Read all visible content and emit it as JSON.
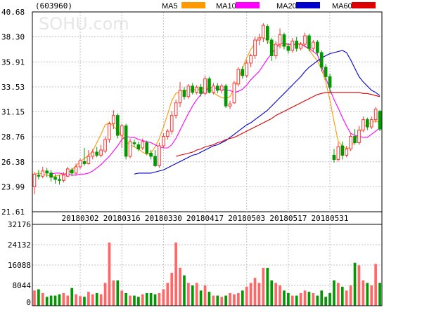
{
  "stock_code": "(603960)",
  "watermark": "SOHU.com",
  "legend": [
    {
      "label": "MA5",
      "color": "#ff9900"
    },
    {
      "label": "MA10",
      "color": "#ff00ff"
    },
    {
      "label": "MA20",
      "color": "#0000cc"
    },
    {
      "label": "MA60",
      "color": "#dd0000"
    }
  ],
  "colors": {
    "up": "#ff3333",
    "down": "#009900",
    "grid": "#c0c0c0"
  },
  "chart_data": {
    "type": "candlestick",
    "price_axis": {
      "ticks": [
        "40.68",
        "38.30",
        "35.91",
        "33.53",
        "31.15",
        "28.76",
        "26.38",
        "23.99",
        "21.61"
      ],
      "min": 21.61,
      "max": 40.68
    },
    "volume_axis": {
      "ticks": [
        "32176",
        "24132",
        "16088",
        "8044",
        "0"
      ],
      "min": 0,
      "max": 32176
    },
    "date_ticks": [
      {
        "label": "20180302",
        "index": 11
      },
      {
        "label": "20180316",
        "index": 21
      },
      {
        "label": "20180330",
        "index": 31
      },
      {
        "label": "20180417",
        "index": 41
      },
      {
        "label": "20180503",
        "index": 51
      },
      {
        "label": "20180517",
        "index": 61
      },
      {
        "label": "20180531",
        "index": 71
      }
    ],
    "candles": [
      [
        24.0,
        25.2,
        25.4,
        23.3
      ],
      [
        25.1,
        25.0,
        25.6,
        24.7
      ],
      [
        25.0,
        25.5,
        25.9,
        24.8
      ],
      [
        25.5,
        25.3,
        25.8,
        24.9
      ],
      [
        25.3,
        24.9,
        25.6,
        24.5
      ],
      [
        24.9,
        24.7,
        25.2,
        24.3
      ],
      [
        24.7,
        24.6,
        25.1,
        24.2
      ],
      [
        24.6,
        25.1,
        25.4,
        24.4
      ],
      [
        25.0,
        25.7,
        25.9,
        24.9
      ],
      [
        25.6,
        25.3,
        25.8,
        25.0
      ],
      [
        25.3,
        25.9,
        26.2,
        25.1
      ],
      [
        25.9,
        26.5,
        26.7,
        25.7
      ],
      [
        26.4,
        26.2,
        27.7,
        26.0
      ],
      [
        26.2,
        26.9,
        27.5,
        26.1
      ],
      [
        26.9,
        27.3,
        27.6,
        26.6
      ],
      [
        27.3,
        27.0,
        27.8,
        26.8
      ],
      [
        27.0,
        27.5,
        28.0,
        26.8
      ],
      [
        27.4,
        28.5,
        28.8,
        27.2
      ],
      [
        28.5,
        30.0,
        30.2,
        28.2
      ],
      [
        30.0,
        30.8,
        31.3,
        29.5
      ],
      [
        30.8,
        28.9,
        31.0,
        28.6
      ],
      [
        28.9,
        29.8,
        30.0,
        27.7
      ],
      [
        29.8,
        26.9,
        30.0,
        26.6
      ],
      [
        26.9,
        28.3,
        28.6,
        26.7
      ],
      [
        28.2,
        28.1,
        28.5,
        27.8
      ],
      [
        28.0,
        27.6,
        28.3,
        27.4
      ],
      [
        27.7,
        28.3,
        28.6,
        27.5
      ],
      [
        28.2,
        27.2,
        28.4,
        27.0
      ],
      [
        27.2,
        26.9,
        27.5,
        26.6
      ],
      [
        26.9,
        26.0,
        27.5,
        25.9
      ],
      [
        26.0,
        27.9,
        28.2,
        25.8
      ],
      [
        27.9,
        28.8,
        29.1,
        27.7
      ],
      [
        28.8,
        29.3,
        29.5,
        28.5
      ],
      [
        29.3,
        30.8,
        31.2,
        29.0
      ],
      [
        30.8,
        32.0,
        32.3,
        30.5
      ],
      [
        32.0,
        33.2,
        34.0,
        31.6
      ],
      [
        33.2,
        32.6,
        33.5,
        32.3
      ],
      [
        32.6,
        33.6,
        33.8,
        32.4
      ],
      [
        33.6,
        33.0,
        33.9,
        32.8
      ],
      [
        33.0,
        33.5,
        33.7,
        32.8
      ],
      [
        33.5,
        32.9,
        33.8,
        32.6
      ],
      [
        32.9,
        34.3,
        34.6,
        32.7
      ],
      [
        34.3,
        33.0,
        34.5,
        32.9
      ],
      [
        33.0,
        33.6,
        33.9,
        32.8
      ],
      [
        33.6,
        33.2,
        33.9,
        32.9
      ],
      [
        33.2,
        33.6,
        33.8,
        32.9
      ],
      [
        33.6,
        31.7,
        33.8,
        31.5
      ],
      [
        31.7,
        31.9,
        32.2,
        31.4
      ],
      [
        32.0,
        33.9,
        34.1,
        31.9
      ],
      [
        33.8,
        35.2,
        35.4,
        33.6
      ],
      [
        35.2,
        34.6,
        35.5,
        34.3
      ],
      [
        34.6,
        35.8,
        36.1,
        34.4
      ],
      [
        35.8,
        36.5,
        36.7,
        35.4
      ],
      [
        36.5,
        38.0,
        38.3,
        36.2
      ],
      [
        38.0,
        38.2,
        38.6,
        37.5
      ],
      [
        38.2,
        39.4,
        39.6,
        37.8
      ],
      [
        39.3,
        38.0,
        39.5,
        37.6
      ],
      [
        38.0,
        36.5,
        38.2,
        36.0
      ],
      [
        36.5,
        37.6,
        37.9,
        36.2
      ],
      [
        37.6,
        38.5,
        39.1,
        37.2
      ],
      [
        38.5,
        37.4,
        38.7,
        37.1
      ],
      [
        37.4,
        37.0,
        37.7,
        36.7
      ],
      [
        37.0,
        37.9,
        38.2,
        36.8
      ],
      [
        37.9,
        37.2,
        38.3,
        36.9
      ],
      [
        37.2,
        37.6,
        37.8,
        37.0
      ],
      [
        37.6,
        38.4,
        38.7,
        37.3
      ],
      [
        38.4,
        37.2,
        38.6,
        36.9
      ],
      [
        37.2,
        37.8,
        38.0,
        36.9
      ],
      [
        37.8,
        36.8,
        38.0,
        36.5
      ],
      [
        36.8,
        35.4,
        37.0,
        35.0
      ],
      [
        35.4,
        34.5,
        35.7,
        34.2
      ],
      [
        34.5,
        33.5,
        34.8,
        32.9
      ],
      [
        27.0,
        26.6,
        27.6,
        26.3
      ],
      [
        26.6,
        27.8,
        28.2,
        26.4
      ],
      [
        27.9,
        27.0,
        28.3,
        26.6
      ],
      [
        27.0,
        27.6,
        27.9,
        26.8
      ],
      [
        27.6,
        28.8,
        29.1,
        27.4
      ],
      [
        28.8,
        28.2,
        29.5,
        28.0
      ],
      [
        28.2,
        29.4,
        29.8,
        28.0
      ],
      [
        29.4,
        30.4,
        30.7,
        29.2
      ],
      [
        30.4,
        29.7,
        30.6,
        29.4
      ],
      [
        29.7,
        30.4,
        30.7,
        29.5
      ],
      [
        30.4,
        31.4,
        31.6,
        30.1
      ],
      [
        31.2,
        29.5,
        31.3,
        29.3
      ]
    ],
    "ma": {
      "MA5": [
        25.2,
        25.3,
        25.2,
        25.1,
        25.0,
        25.0,
        25.1,
        25.2,
        25.3,
        25.6,
        26.0,
        26.4,
        26.7,
        27.0,
        27.4,
        28.2,
        29.0,
        29.9,
        30.1,
        29.8,
        29.3,
        28.9,
        28.3,
        28.0,
        27.8,
        27.6,
        27.3,
        27.1,
        27.2,
        27.8,
        28.6,
        29.7,
        30.9,
        32.2,
        32.9,
        33.1,
        33.2,
        33.2,
        33.3,
        33.2,
        33.4,
        33.4,
        33.4,
        33.0,
        32.7,
        32.5,
        32.4,
        32.6,
        33.4,
        34.3,
        35.3,
        36.3,
        37.1,
        37.7,
        38.2,
        38.3,
        37.9,
        37.6,
        37.5,
        37.4,
        37.5,
        37.6,
        37.5,
        37.6,
        37.7,
        37.4,
        37.1,
        36.5,
        36.0,
        35.2,
        34.0,
        32.3,
        30.2,
        28.3,
        27.9,
        27.6,
        27.8,
        28.4,
        29.1,
        29.7,
        30.0,
        30.1,
        30.3,
        30.1
      ],
      "MA10": [
        25.2,
        25.3,
        25.3,
        25.2,
        25.2,
        25.1,
        25.1,
        25.2,
        25.2,
        25.3,
        25.5,
        25.8,
        26.1,
        26.5,
        26.9,
        27.4,
        27.9,
        28.5,
        28.8,
        28.7,
        28.7,
        28.5,
        28.4,
        28.3,
        28.2,
        28.0,
        27.8,
        27.7,
        27.7,
        28.0,
        28.6,
        29.4,
        30.2,
        31.0,
        31.7,
        32.3,
        32.8,
        33.2,
        33.4,
        33.5,
        33.3,
        33.3,
        33.2,
        33.2,
        33.0,
        33.1,
        33.3,
        33.7,
        34.2,
        34.6,
        35.0,
        35.6,
        36.2,
        36.7,
        37.2,
        37.7,
        37.7,
        37.6,
        37.6,
        37.6,
        37.6,
        37.4,
        37.2,
        36.9,
        36.6,
        35.5,
        34.4,
        33.3,
        32.3,
        31.5,
        30.6,
        29.8,
        29.1,
        28.9,
        28.8,
        28.7,
        28.7,
        29.0,
        29.3,
        29.6
      ],
      "MA20": [
        25.2,
        25.3,
        25.3,
        25.3,
        25.3,
        25.4,
        25.5,
        25.6,
        25.8,
        26.0,
        26.2,
        26.4,
        26.6,
        26.8,
        27.0,
        27.1,
        27.3,
        27.5,
        27.7,
        27.9,
        28.0,
        28.2,
        28.4,
        28.7,
        29.0,
        29.3,
        29.6,
        29.9,
        30.1,
        30.4,
        30.7,
        31.0,
        31.3,
        31.7,
        32.1,
        32.5,
        32.9,
        33.3,
        33.7,
        34.1,
        34.5,
        35.0,
        35.4,
        35.7,
        36.0,
        36.3,
        36.5,
        36.7,
        36.8,
        36.9,
        37.0,
        36.8,
        36.1,
        35.3,
        34.5,
        34.0,
        33.6,
        33.2,
        33.0,
        32.7
      ],
      "MA60": [
        26.9,
        27.0,
        27.1,
        27.2,
        27.3,
        27.5,
        27.6,
        27.8,
        27.9,
        28.0,
        28.2,
        28.3,
        28.5,
        28.6,
        28.7,
        28.9,
        29.1,
        29.3,
        29.5,
        29.7,
        29.9,
        30.1,
        30.3,
        30.5,
        30.8,
        31.0,
        31.2,
        31.4,
        31.6,
        31.8,
        32.0,
        32.2,
        32.4,
        32.6,
        32.8,
        32.9,
        33.0,
        33.0,
        33.0,
        33.0,
        33.0,
        33.0,
        33.0,
        33.0,
        33.0,
        32.9,
        32.9,
        32.8,
        32.7,
        32.6
      ]
    },
    "volume": [
      6,
      6.5,
      5,
      3.5,
      4,
      4,
      4.5,
      5,
      4,
      7,
      4.5,
      3.8,
      3.5,
      5.5,
      4.5,
      5,
      4.5,
      9,
      25,
      10,
      10,
      6,
      5,
      4,
      4,
      3.5,
      4.5,
      5,
      5,
      4.5,
      5,
      6.5,
      9,
      13,
      25,
      15,
      12,
      9,
      8,
      9,
      6,
      8,
      5.5,
      4,
      4,
      3.5,
      4,
      5,
      4.5,
      5,
      6,
      7.5,
      9,
      11,
      9,
      15,
      15,
      10,
      9,
      8,
      6,
      5,
      4,
      4,
      5,
      6,
      5.5,
      5,
      4,
      6,
      3.5,
      5,
      10,
      9,
      7.5,
      6,
      8,
      17,
      16,
      10,
      9,
      8,
      16.5,
      9
    ]
  }
}
